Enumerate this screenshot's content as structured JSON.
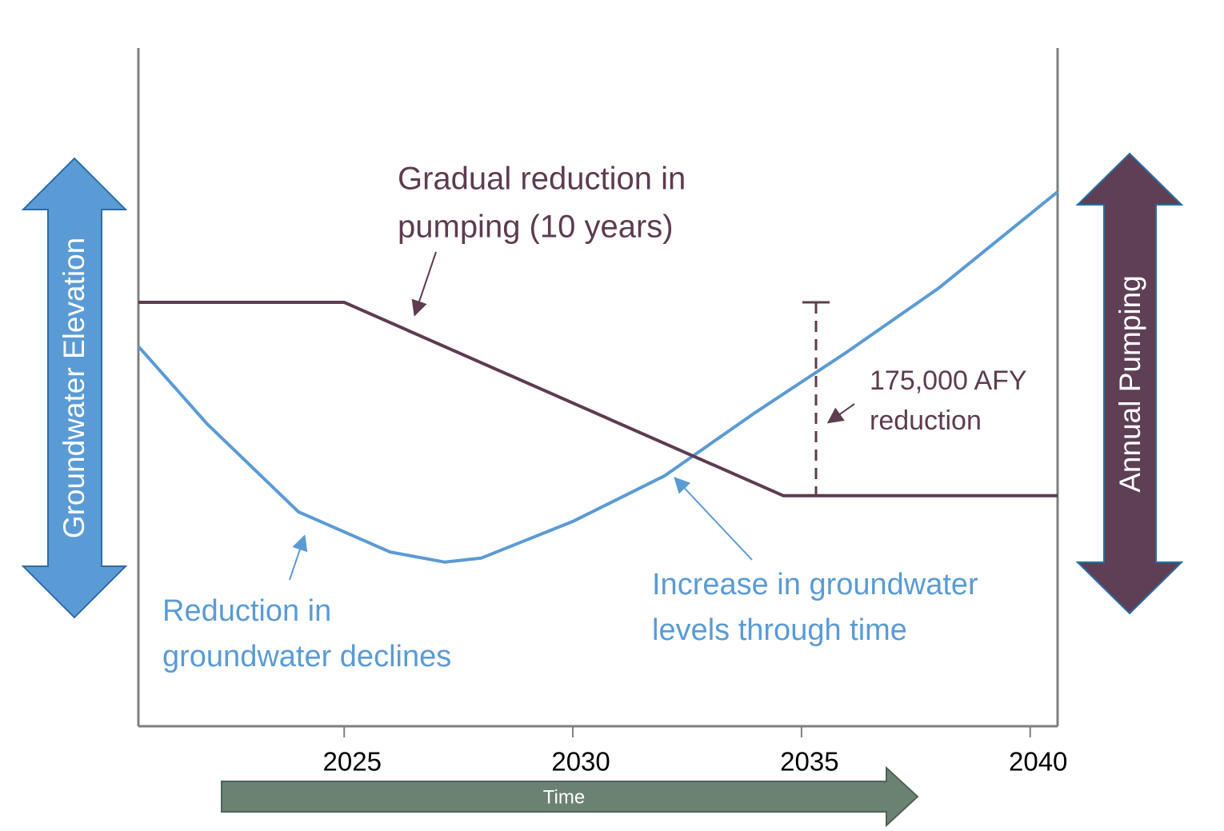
{
  "chart_data": {
    "type": "line",
    "x_label": "Time",
    "y_label": "Groundwater Elevation",
    "y2_label": "Annual Pumping",
    "xlim": [
      2020.5,
      2040.6
    ],
    "xticks": [
      2025,
      2030,
      2035,
      2040
    ],
    "ylim": [
      0,
      100
    ],
    "y2lim": [
      0,
      100
    ],
    "series": [
      {
        "color": "#5b9bd5",
        "x": [
          2020.5,
          2022,
          2024,
          2026,
          2027.2,
          2028,
          2030,
          2032,
          2034,
          2036,
          2038,
          2040.6
        ],
        "values": [
          56,
          44.6,
          31.6,
          25.7,
          24.2,
          24.8,
          30.2,
          36.9,
          46.3,
          55.2,
          64.6,
          78.8
        ]
      },
      {
        "color": "#5e3c51",
        "axis": "y2",
        "x": [
          2020.5,
          2025,
          2034.6,
          2040.6
        ],
        "values": [
          62.5,
          62.5,
          34,
          34
        ]
      }
    ],
    "annotations": [
      {
        "lines": [
          "Gradual reduction in",
          "pumping (10 years)"
        ],
        "color": "#5e3c51"
      },
      {
        "lines": [
          "175,000 AFY",
          "reduction"
        ],
        "color": "#5e3c51"
      },
      {
        "lines": [
          "Reduction in",
          "groundwater declines"
        ],
        "color": "#5b9bd5"
      },
      {
        "lines": [
          "Increase in groundwater",
          "levels through time"
        ],
        "color": "#5b9bd5"
      }
    ]
  }
}
